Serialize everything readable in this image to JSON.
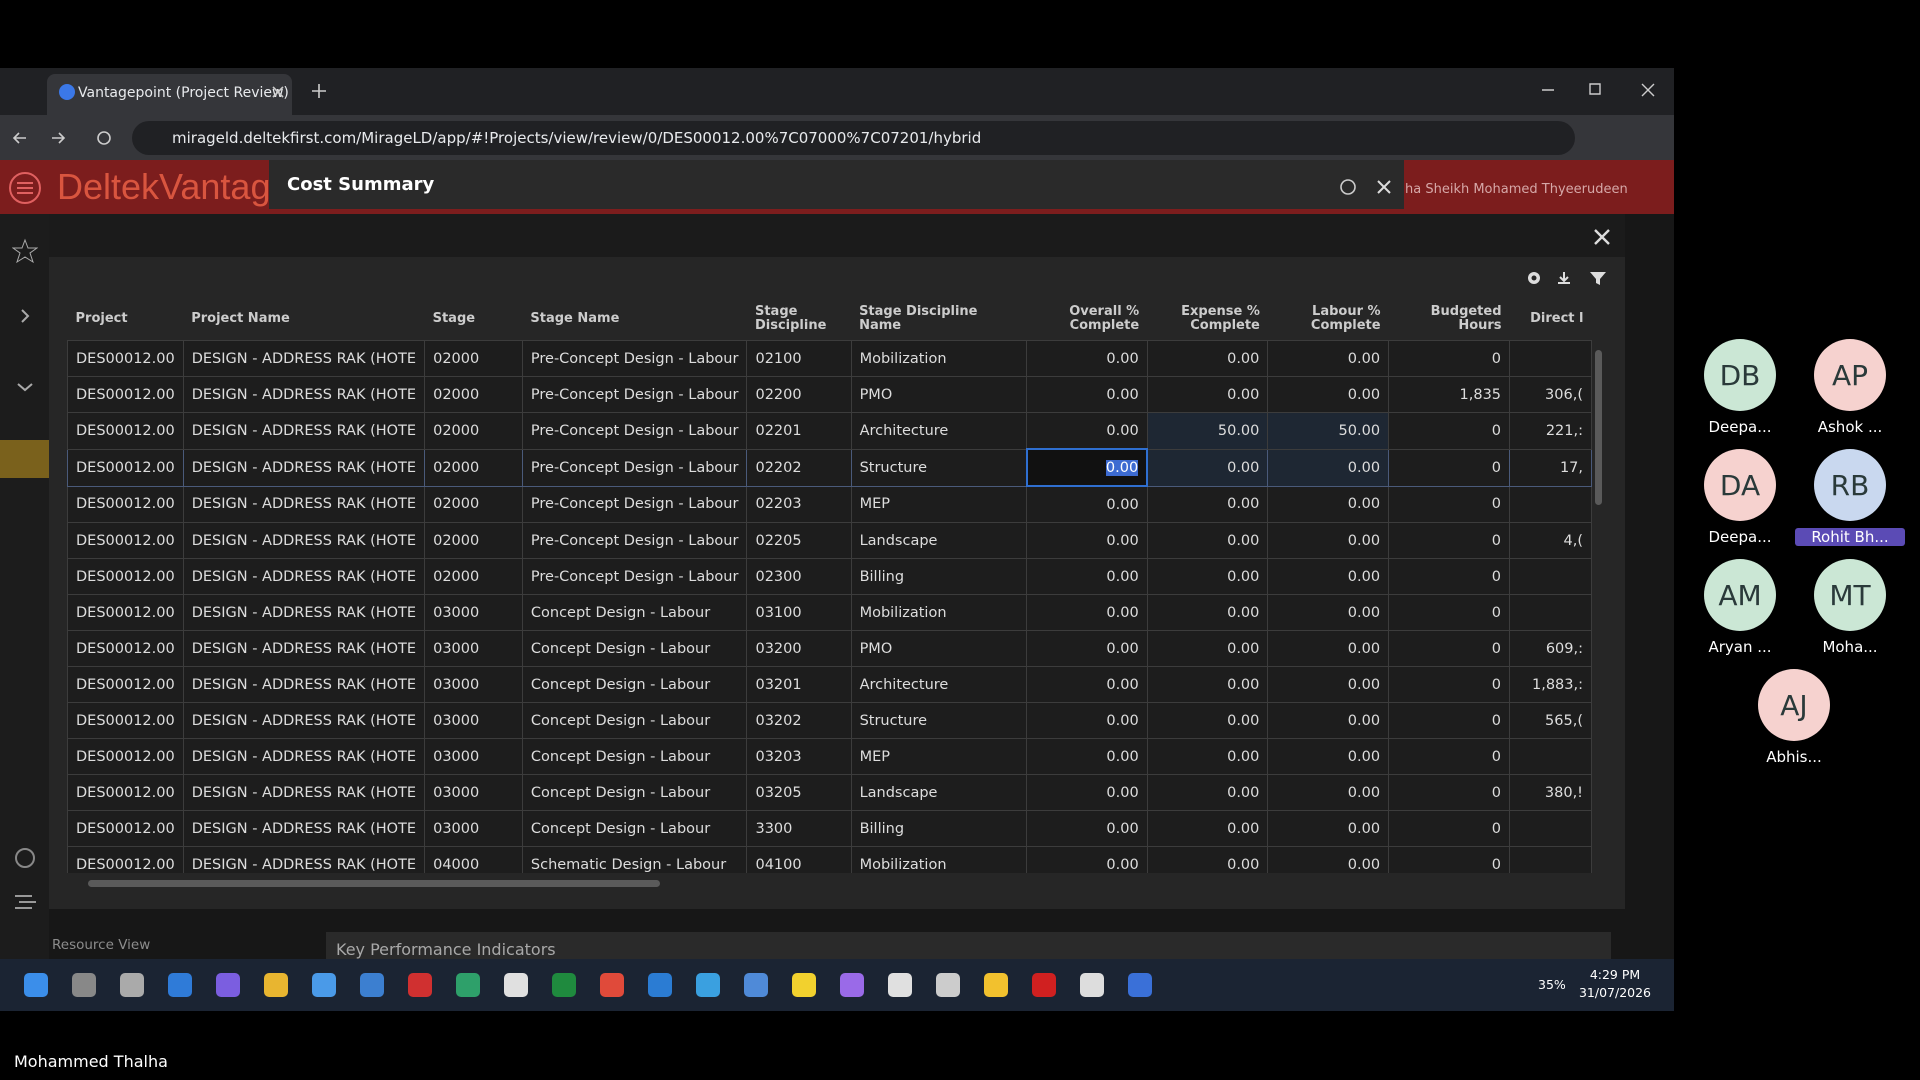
{
  "browser": {
    "tab_title": "Vantagepoint (Project Review)",
    "url": "mirageld.deltekfirst.com/MirageLD/app/#!Projects/view/review/0/DES00012.00%7C07000%7C07201/hybrid"
  },
  "app": {
    "logo": "DeltekVantag",
    "user": "ha Sheikh Mohamed Thyeerudeen",
    "dialog_title": "Cost Summary",
    "resource_view": "Resource View",
    "kpi_title": "Key Performance Indicators"
  },
  "table": {
    "columns": [
      "Project",
      "Project Name",
      "Stage",
      "Stage Name",
      "Stage Discipline",
      "Stage Discipline Name",
      "Overall % Complete",
      "Expense % Complete",
      "Labour % Complete",
      "Budgeted Hours",
      "Direct l"
    ],
    "rows": [
      [
        "DES00012.00",
        "DESIGN - ADDRESS RAK (HOTE",
        "02000",
        "Pre-Concept Design - Labour",
        "02100",
        "Mobilization",
        "0.00",
        "0.00",
        "0.00",
        "0",
        null
      ],
      [
        "DES00012.00",
        "DESIGN - ADDRESS RAK (HOTE",
        "02000",
        "Pre-Concept Design - Labour",
        "02200",
        "PMO",
        "0.00",
        "0.00",
        "0.00",
        "1,835",
        "306,("
      ],
      [
        "DES00012.00",
        "DESIGN - ADDRESS RAK (HOTE",
        "02000",
        "Pre-Concept Design - Labour",
        "02201",
        "Architecture",
        "0.00",
        "50.00",
        "50.00",
        "0",
        "221,:"
      ],
      [
        "DES00012.00",
        "DESIGN - ADDRESS RAK (HOTE",
        "02000",
        "Pre-Concept Design - Labour",
        "02202",
        "Structure",
        "0.00",
        "0.00",
        "0.00",
        "0",
        "17,"
      ],
      [
        "DES00012.00",
        "DESIGN - ADDRESS RAK (HOTE",
        "02000",
        "Pre-Concept Design - Labour",
        "02203",
        "MEP",
        "0.00",
        "0.00",
        "0.00",
        "0",
        null
      ],
      [
        "DES00012.00",
        "DESIGN - ADDRESS RAK (HOTE",
        "02000",
        "Pre-Concept Design - Labour",
        "02205",
        "Landscape",
        "0.00",
        "0.00",
        "0.00",
        "0",
        "4,("
      ],
      [
        "DES00012.00",
        "DESIGN - ADDRESS RAK (HOTE",
        "02000",
        "Pre-Concept Design - Labour",
        "02300",
        "Billing",
        "0.00",
        "0.00",
        "0.00",
        "0",
        null
      ],
      [
        "DES00012.00",
        "DESIGN - ADDRESS RAK (HOTE",
        "03000",
        "Concept Design - Labour",
        "03100",
        "Mobilization",
        "0.00",
        "0.00",
        "0.00",
        "0",
        null
      ],
      [
        "DES00012.00",
        "DESIGN - ADDRESS RAK (HOTE",
        "03000",
        "Concept Design - Labour",
        "03200",
        "PMO",
        "0.00",
        "0.00",
        "0.00",
        "0",
        "609,:"
      ],
      [
        "DES00012.00",
        "DESIGN - ADDRESS RAK (HOTE",
        "03000",
        "Concept Design - Labour",
        "03201",
        "Architecture",
        "0.00",
        "0.00",
        "0.00",
        "0",
        "1,883,:"
      ],
      [
        "DES00012.00",
        "DESIGN - ADDRESS RAK (HOTE",
        "03000",
        "Concept Design - Labour",
        "03202",
        "Structure",
        "0.00",
        "0.00",
        "0.00",
        "0",
        "565,("
      ],
      [
        "DES00012.00",
        "DESIGN - ADDRESS RAK (HOTE",
        "03000",
        "Concept Design - Labour",
        "03203",
        "MEP",
        "0.00",
        "0.00",
        "0.00",
        "0",
        null
      ],
      [
        "DES00012.00",
        "DESIGN - ADDRESS RAK (HOTE",
        "03000",
        "Concept Design - Labour",
        "03205",
        "Landscape",
        "0.00",
        "0.00",
        "0.00",
        "0",
        "380,!"
      ],
      [
        "DES00012.00",
        "DESIGN - ADDRESS RAK (HOTE",
        "03000",
        "Concept Design - Labour",
        "3300",
        "Billing",
        "0.00",
        "0.00",
        "0.00",
        "0",
        null
      ],
      [
        "DES00012.00",
        "DESIGN - ADDRESS RAK (HOTE",
        "04000",
        "Schematic Design - Labour",
        "04100",
        "Mobilization",
        "0.00",
        "0.00",
        "0.00",
        "0",
        null
      ]
    ]
  },
  "participants": [
    {
      "initials": "DB",
      "name": "Deepa..."
    },
    {
      "initials": "AP",
      "name": "Ashok ..."
    },
    {
      "initials": "DA",
      "name": "Deepa..."
    },
    {
      "initials": "RB",
      "name": "Rohit Bh..."
    },
    {
      "initials": "AM",
      "name": "Aryan ..."
    },
    {
      "initials": "MT",
      "name": "Moha..."
    },
    {
      "initials": "AJ",
      "name": "Abhis..."
    }
  ],
  "taskbar": {
    "battery": "35%",
    "time": "4:29 PM",
    "date": "31/07/2026"
  },
  "presenter": "Mohammed Thalha"
}
